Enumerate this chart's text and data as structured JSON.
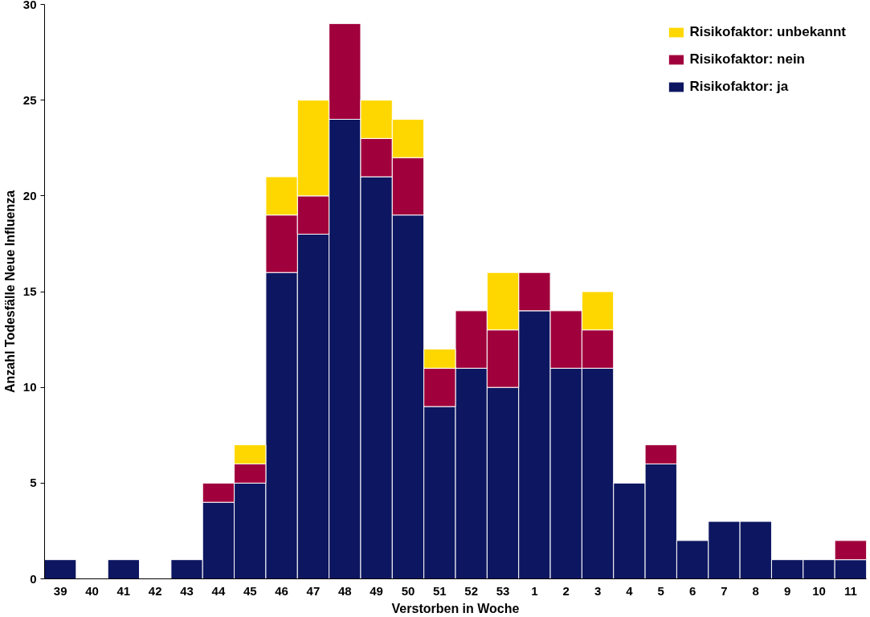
{
  "chart_data": {
    "type": "bar",
    "stacked": true,
    "xlabel": "Verstorben in Woche",
    "ylabel": "Anzahl Todesfälle Neue Influenza",
    "categories": [
      "39",
      "40",
      "41",
      "42",
      "43",
      "44",
      "45",
      "46",
      "47",
      "48",
      "49",
      "50",
      "51",
      "52",
      "53",
      "1",
      "2",
      "3",
      "4",
      "5",
      "6",
      "7",
      "8",
      "9",
      "10",
      "11"
    ],
    "series": [
      {
        "name": "Risikofaktor: ja",
        "color": "#0d1660",
        "values": [
          1,
          0,
          1,
          0,
          1,
          4,
          5,
          16,
          18,
          24,
          21,
          19,
          9,
          11,
          10,
          14,
          11,
          11,
          5,
          6,
          2,
          3,
          3,
          1,
          1,
          1
        ]
      },
      {
        "name": "Risikofaktor: nein",
        "color": "#a0003c",
        "values": [
          0,
          0,
          0,
          0,
          0,
          1,
          1,
          3,
          2,
          5,
          2,
          3,
          2,
          3,
          3,
          2,
          3,
          2,
          0,
          1,
          0,
          0,
          0,
          0,
          0,
          1
        ]
      },
      {
        "name": "Risikofaktor: unbekannt",
        "color": "#ffd700",
        "values": [
          0,
          0,
          0,
          0,
          0,
          0,
          1,
          2,
          5,
          0,
          2,
          2,
          1,
          0,
          3,
          0,
          0,
          2,
          0,
          0,
          0,
          0,
          0,
          0,
          0,
          0
        ]
      }
    ],
    "ylim": [
      0,
      30
    ],
    "yticks": [
      0,
      5,
      10,
      15,
      20,
      25,
      30
    ],
    "grid": false,
    "legend": "top right"
  }
}
